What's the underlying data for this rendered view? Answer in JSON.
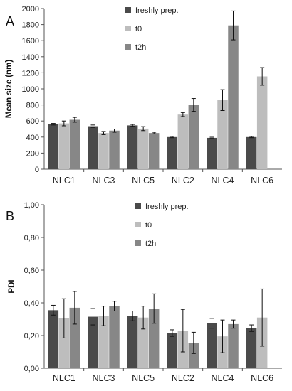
{
  "colors": {
    "freshly": "#4a4a4a",
    "t0": "#bdbdbd",
    "t2h": "#878787"
  },
  "chart_data": [
    {
      "type": "bar",
      "panel_label": "A",
      "title": "",
      "xlabel": "",
      "ylabel": "Mean size (nm)",
      "ylim": [
        0,
        2000
      ],
      "yticks": [
        "0",
        "200",
        "400",
        "600",
        "800",
        "1000",
        "1200",
        "1400",
        "1600",
        "1800",
        "2000"
      ],
      "grid": false,
      "legend_position": "top-center",
      "categories": [
        "NLC1",
        "NLC3",
        "NLC5",
        "NLC2",
        "NLC4",
        "NLC6"
      ],
      "series": [
        {
          "name": "freshly prep.",
          "values": [
            560,
            535,
            545,
            400,
            390,
            400
          ],
          "errors": [
            10,
            15,
            12,
            8,
            8,
            8
          ]
        },
        {
          "name": "t0",
          "values": [
            570,
            450,
            505,
            680,
            860,
            1155
          ],
          "errors": [
            30,
            20,
            25,
            25,
            130,
            110
          ]
        },
        {
          "name": "t2h",
          "values": [
            615,
            480,
            450,
            800,
            1790,
            null
          ],
          "errors": [
            30,
            20,
            10,
            80,
            180,
            null
          ]
        }
      ]
    },
    {
      "type": "bar",
      "panel_label": "B",
      "title": "",
      "xlabel": "",
      "ylabel": "PDI",
      "ylim": [
        0,
        1
      ],
      "yticks": [
        "0,00",
        "0,20",
        "0,40",
        "0,60",
        "0,80",
        "1,00"
      ],
      "grid": false,
      "legend_position": "top-center",
      "categories": [
        "NLC1",
        "NLC3",
        "NLC5",
        "NLC2",
        "NLC4",
        "NLC6"
      ],
      "series": [
        {
          "name": "freshly prep.",
          "values": [
            0.355,
            0.315,
            0.32,
            0.215,
            0.275,
            0.245
          ],
          "errors": [
            0.03,
            0.05,
            0.03,
            0.02,
            0.03,
            0.02
          ]
        },
        {
          "name": "t0",
          "values": [
            0.305,
            0.32,
            0.31,
            0.23,
            0.195,
            0.31
          ],
          "errors": [
            0.12,
            0.06,
            0.07,
            0.13,
            0.1,
            0.175
          ]
        },
        {
          "name": "t2h",
          "values": [
            0.37,
            0.38,
            0.365,
            0.155,
            0.27,
            null
          ],
          "errors": [
            0.1,
            0.03,
            0.09,
            0.065,
            0.025,
            null
          ]
        }
      ]
    }
  ]
}
